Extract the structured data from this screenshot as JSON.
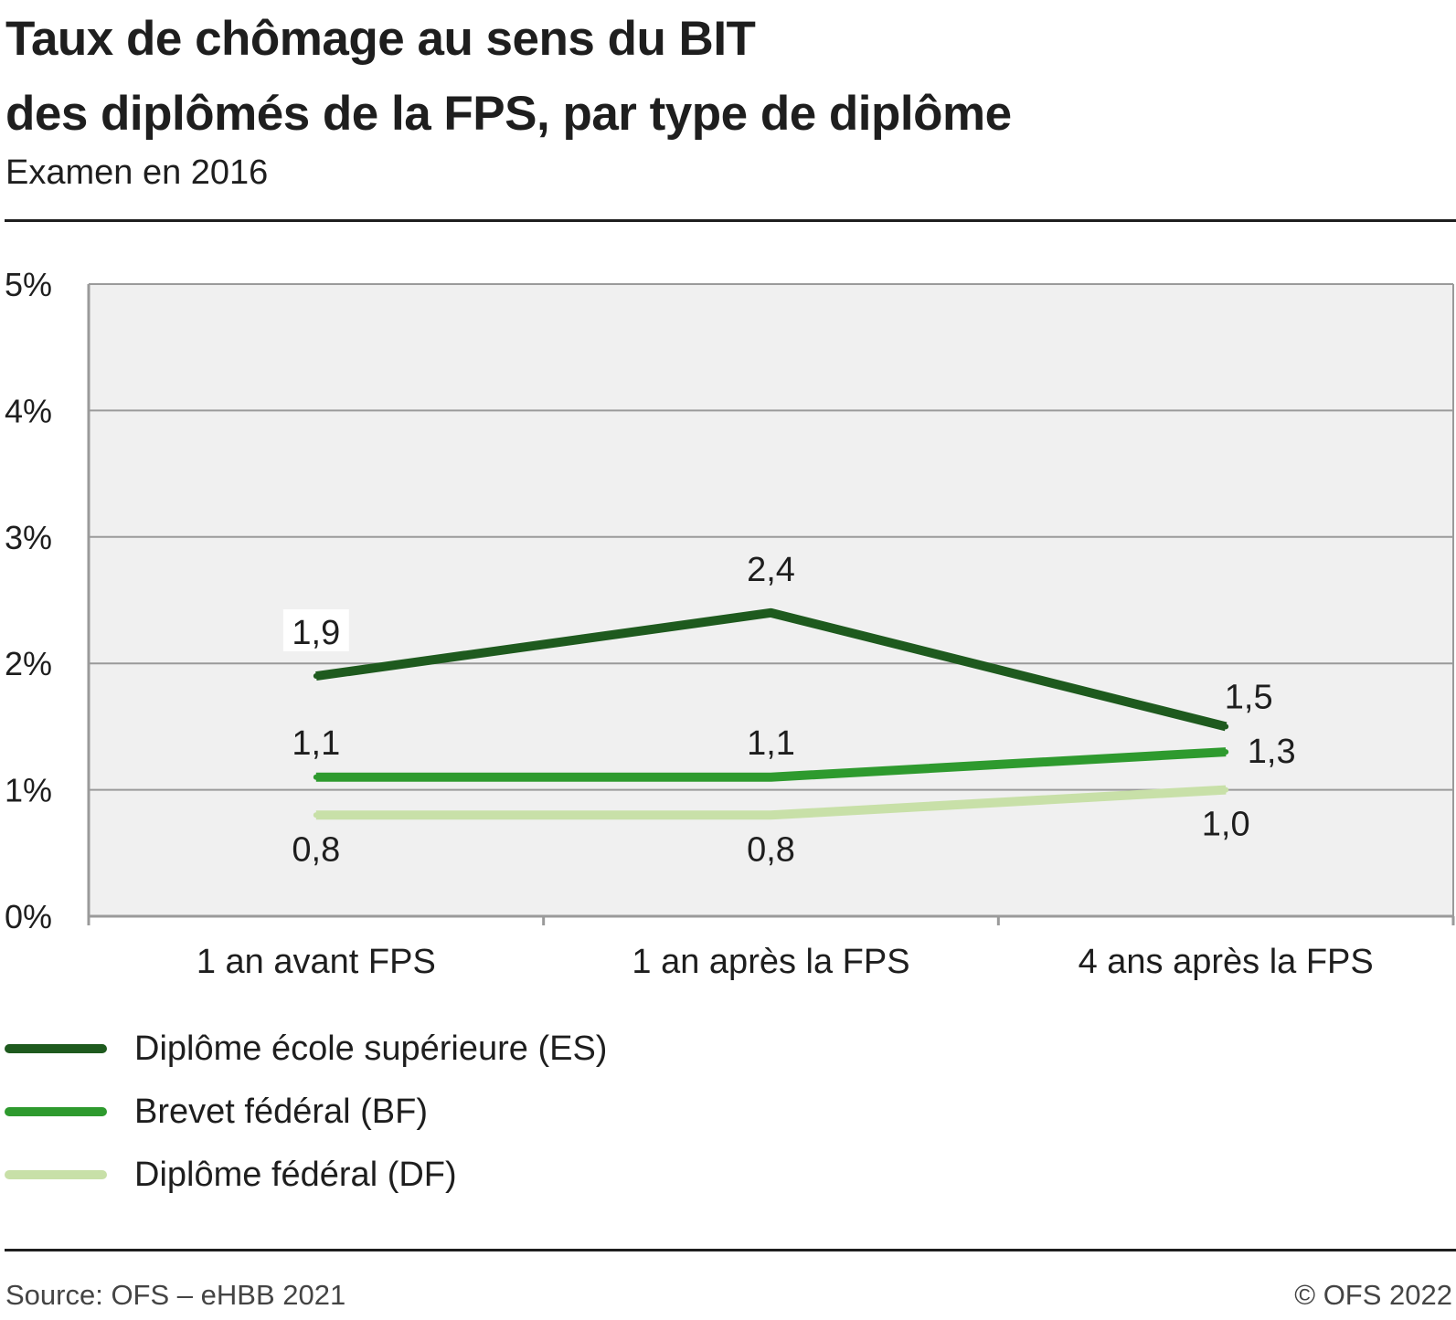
{
  "header": {
    "title_line1": "Taux de chômage au sens du BIT",
    "title_line2": "des diplômés de la FPS, par type de diplôme",
    "subtitle": "Examen en 2016"
  },
  "chart_data": {
    "type": "line",
    "categories": [
      "1 an avant FPS",
      "1 an après la FPS",
      "4 ans après la FPS"
    ],
    "y_ticks": [
      "0%",
      "1%",
      "2%",
      "3%",
      "4%",
      "5%"
    ],
    "ylim": [
      0,
      5
    ],
    "grid": true,
    "background": "#f0f0f0",
    "legend_position": "bottom-left",
    "series": [
      {
        "name": "Diplôme école supérieure (ES)",
        "values": [
          1.9,
          2.4,
          1.5
        ],
        "labels": [
          "1,9",
          "2,4",
          "1,5"
        ],
        "color": "#1e5a1e"
      },
      {
        "name": "Brevet fédéral (BF)",
        "values": [
          1.1,
          1.1,
          1.3
        ],
        "labels": [
          "1,1",
          "1,1",
          "1,3"
        ],
        "color": "#2e9a2e"
      },
      {
        "name": "Diplôme fédéral (DF)",
        "values": [
          0.8,
          0.8,
          1.0
        ],
        "labels": [
          "0,8",
          "0,8",
          "1,0"
        ],
        "color": "#c8e0a8"
      }
    ]
  },
  "footer": {
    "source": "Source: OFS – eHBB 2021",
    "copyright": "© OFS 2022"
  }
}
